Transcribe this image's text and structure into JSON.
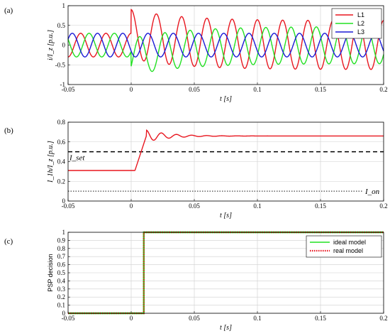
{
  "chart_data": [
    {
      "id": "a",
      "panel_label": "(a)",
      "type": "line",
      "xlabel": "t [s]",
      "ylabel": "i/I_z [p.u.]",
      "xlim": [
        -0.05,
        0.2
      ],
      "ylim": [
        -1,
        1
      ],
      "xticks": [
        "-0.05",
        "0",
        "0.05",
        "0.1",
        "0.15",
        "0.2"
      ],
      "yticks": [
        "-1",
        "-0.5",
        "0",
        "0.5",
        "1"
      ],
      "grid": true,
      "legend": "top-right",
      "frequency_hz": 50,
      "fault_time_s": 0.0,
      "series": [
        {
          "name": "L1",
          "color": "#e8161f",
          "pre_amplitude": 0.3,
          "post_amplitude": 0.62,
          "post_offset": 0.28,
          "offset_decay_s": 0.04,
          "phase_deg": 90
        },
        {
          "name": "L2",
          "color": "#22e022",
          "pre_amplitude": 0.3,
          "post_amplitude": 0.47,
          "post_offset": -0.3,
          "offset_decay_s": 0.04,
          "phase_deg": -30
        },
        {
          "name": "L3",
          "color": "#1a1ad6",
          "pre_amplitude": 0.3,
          "post_amplitude": 0.3,
          "post_offset": 0.0,
          "offset_decay_s": 0.04,
          "phase_deg": 210
        }
      ]
    },
    {
      "id": "b",
      "panel_label": "(b)",
      "type": "line",
      "xlabel": "t [s]",
      "ylabel": "I_1h/I_z [p.u.]",
      "xlim": [
        -0.05,
        0.2
      ],
      "ylim": [
        0,
        0.8
      ],
      "xticks": [
        "-0.05",
        "0",
        "0.05",
        "0.1",
        "0.15",
        "0.2"
      ],
      "yticks": [
        "0",
        "0.2",
        "0.4",
        "0.6",
        "0.8"
      ],
      "grid": true,
      "series": [
        {
          "name": "",
          "color": "#e8161f",
          "pre_value": 0.31,
          "rise_start_s": 0.003,
          "rise_end_s": 0.012,
          "final_value": 0.66,
          "overshoot": 0.06,
          "osc_period_s": 0.012,
          "osc_decay_s": 0.018
        }
      ],
      "thresholds": [
        {
          "label": "I_set",
          "value": 0.5,
          "style": "dashed"
        },
        {
          "label": "I_on",
          "value": 0.1,
          "style": "dotted"
        }
      ]
    },
    {
      "id": "c",
      "panel_label": "(c)",
      "type": "line",
      "xlabel": "t [s]",
      "ylabel": "PSP decision",
      "xlim": [
        -0.05,
        0.2
      ],
      "ylim": [
        0,
        1
      ],
      "xticks": [
        "-0.05",
        "0",
        "0.05",
        "0.1",
        "0.15",
        "0.2"
      ],
      "yticks": [
        "0",
        "0.1",
        "0.2",
        "0.3",
        "0.4",
        "0.5",
        "0.6",
        "0.7",
        "0.8",
        "0.9",
        "1"
      ],
      "grid": true,
      "legend": "top-right",
      "step_time_s": 0.01,
      "series": [
        {
          "name": "ideal model",
          "color": "#22e022",
          "style": "solid",
          "low": 0,
          "high": 1
        },
        {
          "name": "real model",
          "color": "#e8161f",
          "style": "dotted",
          "low": 0,
          "high": 1
        }
      ]
    }
  ]
}
